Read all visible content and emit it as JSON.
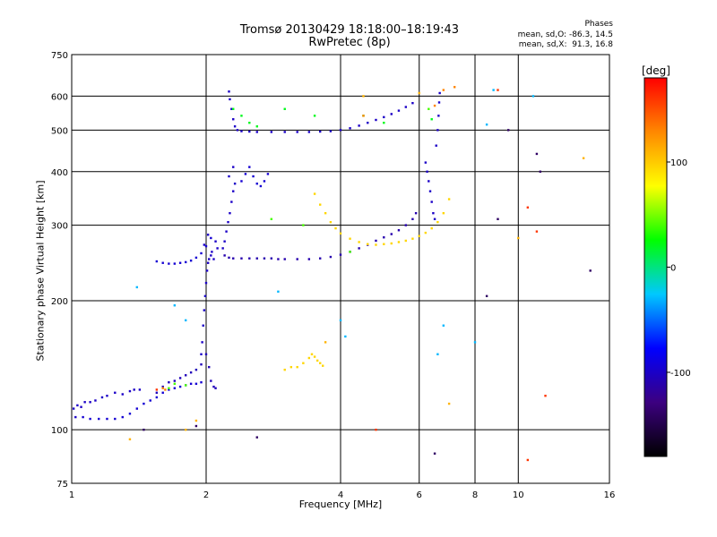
{
  "header": {
    "title": "Tromsø 20130429 18:18:00–18:19:43",
    "subtitle": "RwPretec (8p)",
    "stats_title": "Phases",
    "stats_o": "mean, sd,O: -86.3, 14.5",
    "stats_x": "mean, sd,X:  91.3, 16.8"
  },
  "colorbar": {
    "unit": "[deg]",
    "range": [
      -180,
      180
    ],
    "ticks": [
      {
        "value": 100,
        "label": "100"
      },
      {
        "value": 0,
        "label": "0"
      },
      {
        "value": -100,
        "label": "-100"
      }
    ],
    "colors": [
      "#000000",
      "#3c0080",
      "#0000ff",
      "#00c8ff",
      "#00ff00",
      "#ffff00",
      "#ff8800",
      "#ff0000"
    ]
  },
  "chart_data": {
    "type": "scatter",
    "title": "Tromsø 20130429 18:18:00–18:19:43",
    "xlabel": "Frequency [MHz]",
    "ylabel": "Stationary phase Virtual Height [km]",
    "x_scale": "log",
    "y_scale": "log",
    "xlim": [
      1,
      16
    ],
    "ylim": [
      75,
      750
    ],
    "grid": true,
    "xticks": [
      {
        "value": 1,
        "label": "1"
      },
      {
        "value": 2,
        "label": "2"
      },
      {
        "value": 4,
        "label": "4"
      },
      {
        "value": 6,
        "label": "6"
      },
      {
        "value": 8,
        "label": "8"
      },
      {
        "value": 10,
        "label": "10"
      },
      {
        "value": 16,
        "label": "16"
      }
    ],
    "yticks": [
      {
        "value": 75,
        "label": "75"
      },
      {
        "value": 100,
        "label": "100"
      },
      {
        "value": 200,
        "label": "200"
      },
      {
        "value": 300,
        "label": "300"
      },
      {
        "value": 400,
        "label": "400"
      },
      {
        "value": 500,
        "label": "500"
      },
      {
        "value": 600,
        "label": "600"
      },
      {
        "value": 750,
        "label": "750"
      }
    ],
    "series": [
      {
        "phase": -100,
        "points": [
          [
            1.01,
            112
          ],
          [
            1.02,
            107
          ],
          [
            1.03,
            114
          ],
          [
            1.05,
            113
          ],
          [
            1.07,
            116
          ],
          [
            1.1,
            116
          ],
          [
            1.13,
            117
          ],
          [
            1.17,
            119
          ],
          [
            1.2,
            120
          ],
          [
            1.25,
            122
          ],
          [
            1.3,
            121
          ],
          [
            1.35,
            123
          ],
          [
            1.38,
            124
          ],
          [
            1.42,
            124
          ]
        ]
      },
      {
        "phase": -95,
        "points": [
          [
            1.06,
            107
          ],
          [
            1.1,
            106
          ],
          [
            1.15,
            106
          ],
          [
            1.2,
            106
          ],
          [
            1.25,
            106
          ],
          [
            1.3,
            107
          ],
          [
            1.35,
            109
          ],
          [
            1.4,
            112
          ],
          [
            1.45,
            115
          ],
          [
            1.5,
            117
          ],
          [
            1.55,
            119
          ],
          [
            1.6,
            122
          ],
          [
            1.65,
            124
          ],
          [
            1.7,
            125
          ],
          [
            1.75,
            126
          ],
          [
            1.8,
            127
          ],
          [
            1.85,
            128
          ],
          [
            1.9,
            128
          ],
          [
            1.95,
            129
          ]
        ]
      },
      {
        "phase": -105,
        "points": [
          [
            1.55,
            122
          ],
          [
            1.6,
            126
          ],
          [
            1.65,
            129
          ],
          [
            1.7,
            130
          ],
          [
            1.75,
            132
          ],
          [
            1.8,
            134
          ],
          [
            1.85,
            136
          ],
          [
            1.9,
            138
          ],
          [
            1.95,
            142
          ],
          [
            2.0,
            150
          ],
          [
            2.03,
            140
          ],
          [
            2.05,
            130
          ],
          [
            2.08,
            126
          ],
          [
            2.1,
            125
          ]
        ]
      },
      {
        "phase": -100,
        "points": [
          [
            1.95,
            150
          ],
          [
            1.96,
            160
          ],
          [
            1.97,
            175
          ],
          [
            1.98,
            190
          ],
          [
            1.99,
            205
          ],
          [
            2.0,
            220
          ],
          [
            2.01,
            235
          ],
          [
            2.02,
            245
          ],
          [
            2.03,
            250
          ],
          [
            2.05,
            255
          ],
          [
            1.98,
            270
          ],
          [
            2.02,
            285
          ],
          [
            2.06,
            260
          ],
          [
            2.1,
            275
          ],
          [
            2.08,
            250
          ],
          [
            2.12,
            265
          ]
        ]
      },
      {
        "phase": -95,
        "points": [
          [
            1.55,
            247
          ],
          [
            1.6,
            245
          ],
          [
            1.65,
            244
          ],
          [
            1.7,
            244
          ],
          [
            1.75,
            245
          ],
          [
            1.8,
            246
          ],
          [
            1.85,
            248
          ],
          [
            1.9,
            252
          ],
          [
            1.95,
            258
          ],
          [
            2.0,
            268
          ],
          [
            2.05,
            280
          ]
        ]
      },
      {
        "phase": -110,
        "points": [
          [
            2.2,
            255
          ],
          [
            2.25,
            252
          ],
          [
            2.3,
            251
          ],
          [
            2.4,
            251
          ],
          [
            2.5,
            251
          ],
          [
            2.6,
            251
          ],
          [
            2.7,
            251
          ],
          [
            2.8,
            251
          ],
          [
            2.9,
            250
          ],
          [
            3.0,
            250
          ],
          [
            3.2,
            250
          ],
          [
            3.4,
            250
          ],
          [
            3.6,
            251
          ],
          [
            3.8,
            253
          ],
          [
            4.0,
            256
          ],
          [
            4.2,
            260
          ],
          [
            4.4,
            265
          ],
          [
            4.6,
            270
          ],
          [
            4.8,
            276
          ],
          [
            5.0,
            281
          ],
          [
            5.2,
            286
          ],
          [
            5.4,
            292
          ],
          [
            5.6,
            300
          ],
          [
            5.8,
            310
          ],
          [
            5.9,
            320
          ]
        ]
      },
      {
        "phase": -100,
        "points": [
          [
            2.18,
            265
          ],
          [
            2.2,
            275
          ],
          [
            2.22,
            290
          ],
          [
            2.24,
            305
          ],
          [
            2.26,
            320
          ],
          [
            2.28,
            340
          ],
          [
            2.3,
            360
          ],
          [
            2.32,
            375
          ],
          [
            2.25,
            390
          ],
          [
            2.3,
            410
          ]
        ]
      },
      {
        "phase": -95,
        "points": [
          [
            2.4,
            380
          ],
          [
            2.45,
            395
          ],
          [
            2.5,
            410
          ],
          [
            2.55,
            390
          ],
          [
            2.6,
            375
          ],
          [
            2.65,
            370
          ],
          [
            2.7,
            380
          ],
          [
            2.75,
            395
          ]
        ]
      },
      {
        "phase": -100,
        "points": [
          [
            2.25,
            615
          ],
          [
            2.26,
            590
          ],
          [
            2.28,
            560
          ],
          [
            2.3,
            530
          ],
          [
            2.32,
            510
          ],
          [
            2.35,
            500
          ],
          [
            2.4,
            497
          ],
          [
            2.5,
            496
          ],
          [
            2.6,
            495
          ],
          [
            2.8,
            495
          ],
          [
            3.0,
            495
          ],
          [
            3.2,
            495
          ],
          [
            3.4,
            495
          ],
          [
            3.6,
            496
          ],
          [
            3.8,
            497
          ],
          [
            4.0,
            500
          ],
          [
            4.2,
            505
          ],
          [
            4.4,
            512
          ],
          [
            4.6,
            520
          ],
          [
            4.8,
            528
          ],
          [
            5.0,
            536
          ],
          [
            5.2,
            545
          ],
          [
            5.4,
            555
          ],
          [
            5.6,
            566
          ],
          [
            5.8,
            578
          ]
        ]
      },
      {
        "phase": -100,
        "points": [
          [
            6.2,
            420
          ],
          [
            6.25,
            400
          ],
          [
            6.3,
            380
          ],
          [
            6.35,
            360
          ],
          [
            6.4,
            340
          ],
          [
            6.45,
            320
          ],
          [
            6.5,
            310
          ],
          [
            6.55,
            460
          ],
          [
            6.6,
            500
          ],
          [
            6.63,
            540
          ],
          [
            6.65,
            580
          ],
          [
            6.67,
            610
          ]
        ]
      },
      {
        "phase": 95,
        "points": [
          [
            3.5,
            355
          ],
          [
            3.6,
            335
          ],
          [
            3.7,
            320
          ],
          [
            3.8,
            305
          ],
          [
            3.9,
            295
          ],
          [
            4.0,
            287
          ],
          [
            4.2,
            279
          ],
          [
            4.4,
            274
          ],
          [
            4.6,
            271
          ],
          [
            4.8,
            270
          ],
          [
            5.0,
            271
          ],
          [
            5.2,
            272
          ],
          [
            5.4,
            274
          ],
          [
            5.6,
            276
          ],
          [
            5.8,
            279
          ],
          [
            6.0,
            283
          ],
          [
            6.2,
            288
          ],
          [
            6.4,
            295
          ],
          [
            6.6,
            305
          ],
          [
            6.8,
            320
          ],
          [
            7.0,
            345
          ]
        ]
      },
      {
        "phase": 95,
        "points": [
          [
            3.2,
            140
          ],
          [
            3.3,
            143
          ],
          [
            3.4,
            147
          ],
          [
            3.45,
            150
          ],
          [
            3.5,
            148
          ],
          [
            3.55,
            145
          ],
          [
            3.6,
            143
          ],
          [
            3.65,
            141
          ],
          [
            3.0,
            138
          ],
          [
            3.1,
            140
          ]
        ]
      },
      {
        "phase": 20,
        "points": [
          [
            2.3,
            560
          ],
          [
            2.4,
            540
          ],
          [
            2.5,
            520
          ],
          [
            2.6,
            510
          ],
          [
            3.0,
            560
          ],
          [
            3.5,
            540
          ],
          [
            4.5,
            540
          ],
          [
            5.0,
            520
          ],
          [
            6.4,
            530
          ]
        ]
      },
      {
        "phase": 40,
        "points": [
          [
            1.65,
            125
          ],
          [
            1.7,
            128
          ],
          [
            1.8,
            127
          ],
          [
            2.8,
            310
          ],
          [
            3.3,
            300
          ],
          [
            4.2,
            260
          ],
          [
            6.3,
            560
          ]
        ]
      },
      {
        "phase": 130,
        "points": [
          [
            1.6,
            125
          ],
          [
            1.62,
            124
          ],
          [
            4.5,
            540
          ],
          [
            6.8,
            620
          ],
          [
            7.2,
            630
          ],
          [
            6.5,
            570
          ]
        ]
      },
      {
        "phase": 160,
        "points": [
          [
            1.55,
            124
          ],
          [
            9.0,
            620
          ],
          [
            10.5,
            330
          ],
          [
            11.0,
            290
          ],
          [
            11.5,
            120
          ],
          [
            4.8,
            100
          ],
          [
            10.5,
            85
          ]
        ]
      },
      {
        "phase": -140,
        "points": [
          [
            1.45,
            100
          ],
          [
            1.9,
            102
          ],
          [
            2.6,
            96
          ],
          [
            6.5,
            88
          ],
          [
            8.5,
            205
          ],
          [
            9.5,
            500
          ],
          [
            11.0,
            440
          ],
          [
            14.5,
            235
          ],
          [
            9.0,
            310
          ],
          [
            11.2,
            400
          ]
        ]
      },
      {
        "phase": -30,
        "points": [
          [
            1.4,
            215
          ],
          [
            1.7,
            195
          ],
          [
            1.8,
            180
          ],
          [
            2.9,
            210
          ],
          [
            4.0,
            180
          ],
          [
            4.1,
            165
          ],
          [
            6.6,
            150
          ],
          [
            6.8,
            175
          ],
          [
            8.0,
            160
          ],
          [
            8.8,
            620
          ],
          [
            8.5,
            515
          ],
          [
            10.8,
            600
          ]
        ]
      },
      {
        "phase": 110,
        "points": [
          [
            1.35,
            95
          ],
          [
            1.8,
            100
          ],
          [
            1.9,
            105
          ],
          [
            3.7,
            160
          ],
          [
            6.0,
            610
          ],
          [
            7.0,
            115
          ],
          [
            14.0,
            430
          ],
          [
            10.0,
            280
          ],
          [
            4.5,
            600
          ]
        ]
      }
    ]
  }
}
